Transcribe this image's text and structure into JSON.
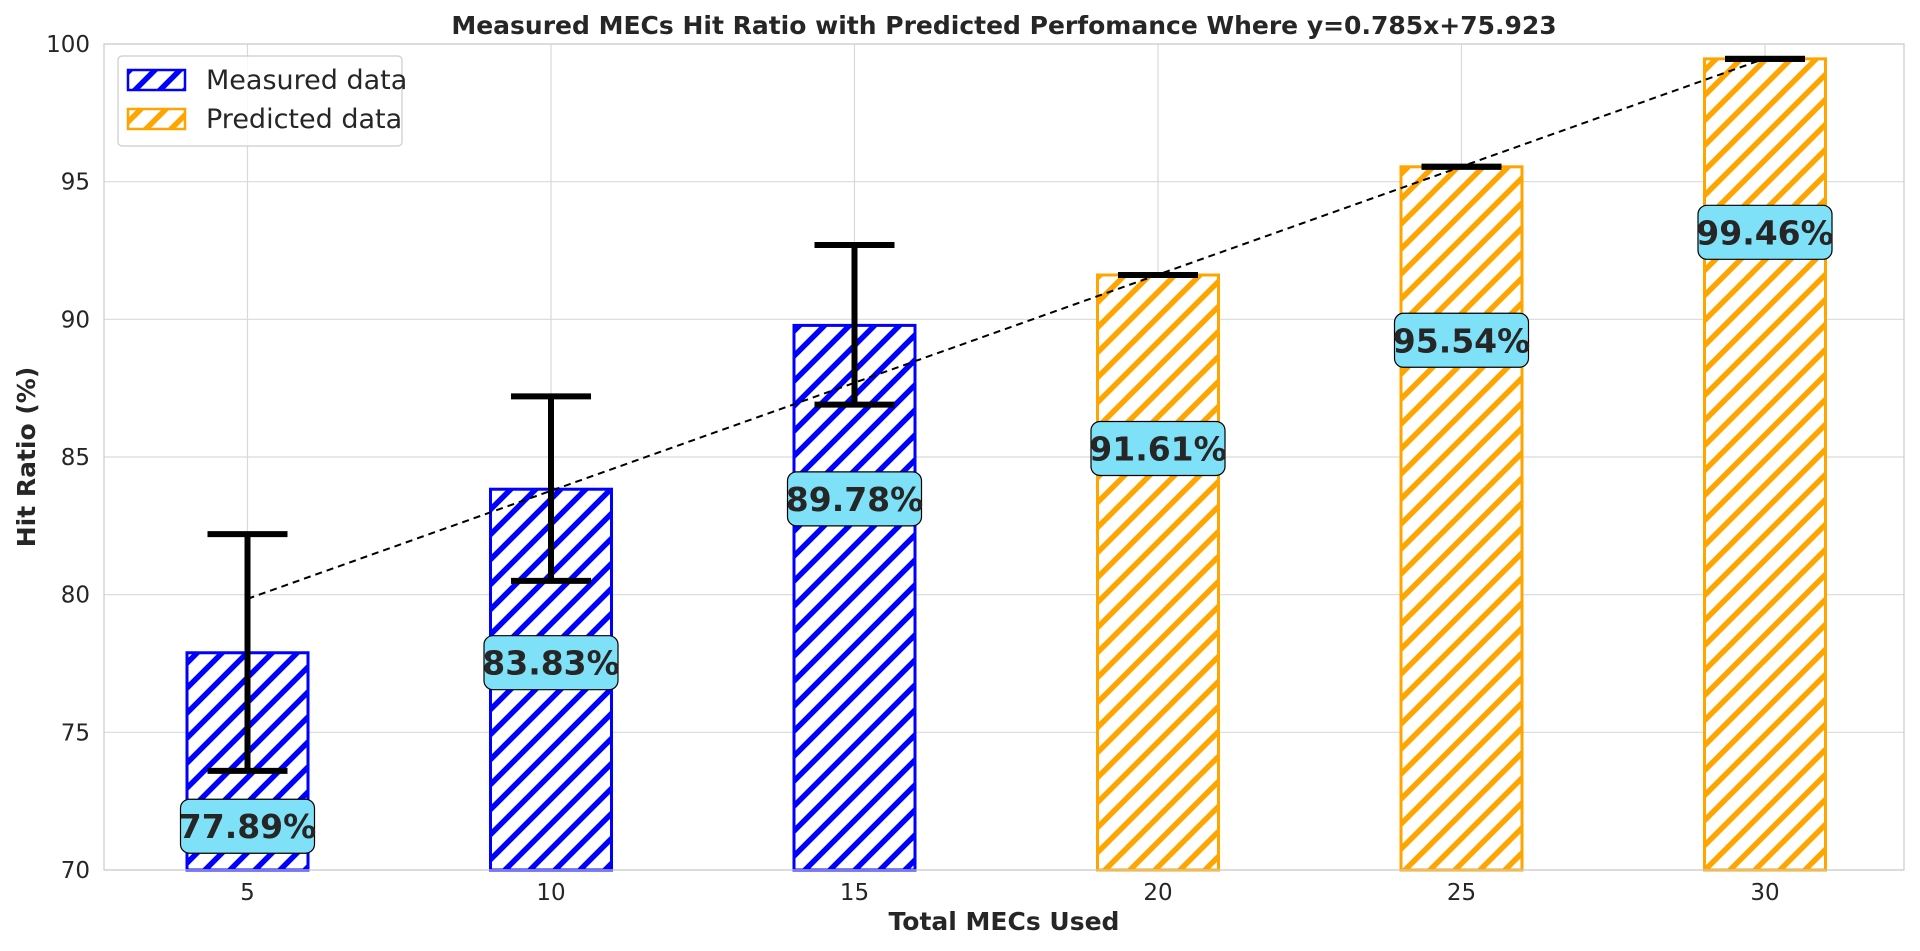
{
  "chart_data": {
    "type": "bar",
    "title": "Measured MECs Hit Ratio with Predicted Perfomance Where y=0.785x+75.923",
    "xlabel": "Total MECs Used",
    "ylabel": "Hit Ratio (%)",
    "ylim": [
      70,
      100
    ],
    "yticks": [
      70,
      75,
      80,
      85,
      90,
      95,
      100
    ],
    "grid": true,
    "legend_position": "top-left",
    "categories": [
      "5",
      "10",
      "15",
      "20",
      "25",
      "30"
    ],
    "x": [
      5,
      10,
      15,
      20,
      25,
      30
    ],
    "series": [
      {
        "name": "Measured data",
        "color": "#0000ff",
        "hatch": "diagonal",
        "x": [
          5,
          10,
          15
        ],
        "values": [
          77.89,
          83.83,
          89.78
        ],
        "error_low": [
          73.6,
          80.5,
          86.9
        ],
        "error_high": [
          82.2,
          87.2,
          92.7
        ],
        "labels": [
          "77.89%",
          "83.83%",
          "89.78%"
        ]
      },
      {
        "name": "Predicted data",
        "color": "#ffa500",
        "hatch": "diagonal",
        "x": [
          20,
          25,
          30
        ],
        "values": [
          91.61,
          95.54,
          99.46
        ],
        "error_low": [
          91.61,
          95.54,
          99.46
        ],
        "error_high": [
          91.61,
          95.54,
          99.46
        ],
        "labels": [
          "91.61%",
          "95.54%",
          "99.46%"
        ]
      }
    ],
    "trendline": {
      "slope": 0.785,
      "intercept": 75.923,
      "x_start": 5,
      "x_end": 30,
      "style": "dashed",
      "color": "#000000"
    },
    "label_box_color": "#7fe1f7"
  }
}
